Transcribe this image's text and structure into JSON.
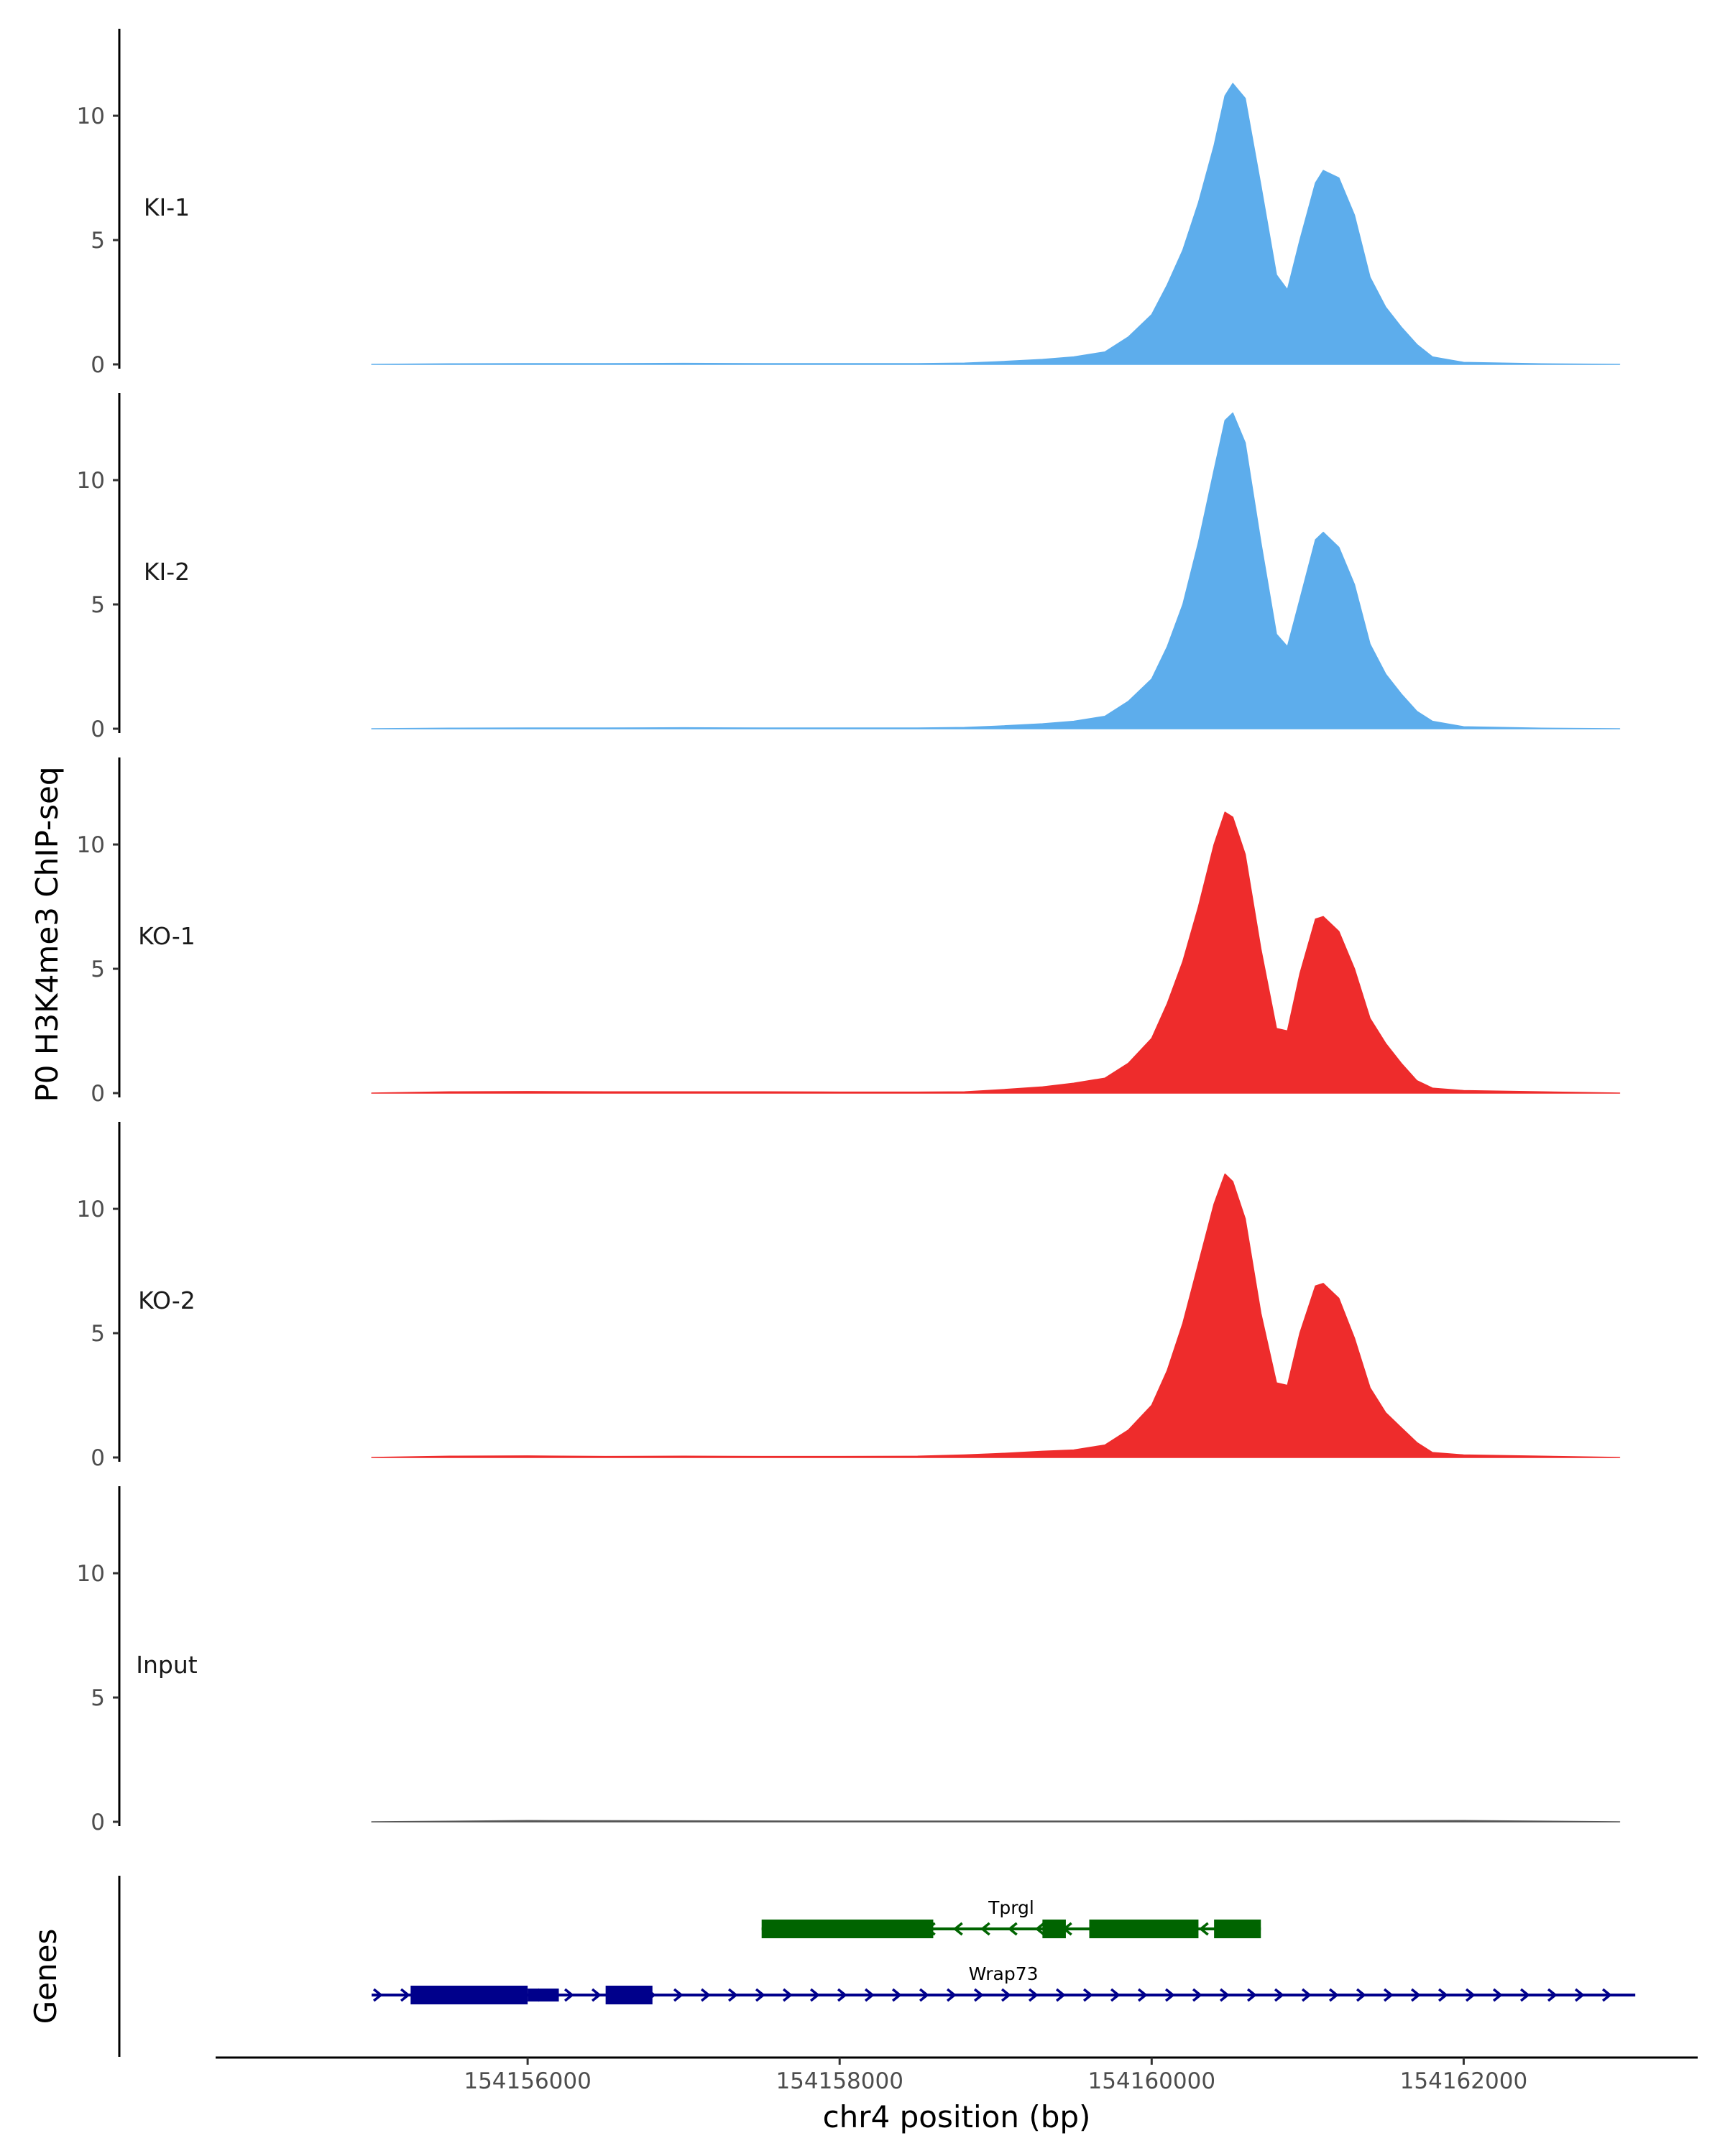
{
  "chart_data": {
    "type": "area",
    "ylabel": "P0 H3K4me3 ChIP-seq",
    "xlabel": "chr4 position (bp)",
    "xlim": [
      154154000,
      154163500
    ],
    "ylim": [
      0,
      13.5
    ],
    "yticks": [
      0,
      5,
      10
    ],
    "xticks": [
      154156000,
      154158000,
      154160000,
      154162000
    ],
    "tracks": [
      {
        "name": "KI-1",
        "color": "#5DADEC",
        "x": [
          154155000,
          154155500,
          154156000,
          154156500,
          154157000,
          154157500,
          154158000,
          154158500,
          154158800,
          154159000,
          154159300,
          154159500,
          154159700,
          154159850,
          154160000,
          154160100,
          154160200,
          154160300,
          154160400,
          154160470,
          154160520,
          154160600,
          154160700,
          154160800,
          154160870,
          154160950,
          154161050,
          154161100,
          154161200,
          154161300,
          154161400,
          154161500,
          154161600,
          154161700,
          154161800,
          154162000,
          154162500,
          154163000
        ],
        "y": [
          0,
          0.02,
          0.03,
          0.03,
          0.04,
          0.03,
          0.03,
          0.03,
          0.05,
          0.1,
          0.2,
          0.3,
          0.5,
          1.1,
          2,
          3.2,
          4.6,
          6.5,
          8.8,
          10.8,
          11.3,
          10.7,
          7.2,
          3.6,
          3,
          5,
          7.3,
          7.8,
          7.5,
          6,
          3.5,
          2.3,
          1.5,
          0.8,
          0.3,
          0.08,
          0.02,
          0
        ]
      },
      {
        "name": "KI-2",
        "color": "#5DADEC",
        "x": [
          154155000,
          154155500,
          154156000,
          154156500,
          154157000,
          154157500,
          154158000,
          154158500,
          154158800,
          154159000,
          154159300,
          154159500,
          154159700,
          154159850,
          154160000,
          154160100,
          154160200,
          154160300,
          154160400,
          154160470,
          154160520,
          154160600,
          154160700,
          154160800,
          154160870,
          154160950,
          154161050,
          154161100,
          154161200,
          154161300,
          154161400,
          154161500,
          154161600,
          154161700,
          154161800,
          154162000,
          154162500,
          154163000
        ],
        "y": [
          0,
          0.02,
          0.03,
          0.03,
          0.04,
          0.03,
          0.03,
          0.03,
          0.05,
          0.1,
          0.2,
          0.3,
          0.5,
          1.1,
          2,
          3.3,
          5,
          7.5,
          10.4,
          12.4,
          12.7,
          11.5,
          7.5,
          3.8,
          3.3,
          5.2,
          7.6,
          7.9,
          7.3,
          5.8,
          3.4,
          2.2,
          1.4,
          0.7,
          0.3,
          0.08,
          0.02,
          0
        ]
      },
      {
        "name": "KO-1",
        "color": "#EE2C2C",
        "x": [
          154155000,
          154155500,
          154156000,
          154156500,
          154157000,
          154157500,
          154158000,
          154158500,
          154158800,
          154159000,
          154159300,
          154159500,
          154159700,
          154159850,
          154160000,
          154160100,
          154160200,
          154160300,
          154160400,
          154160470,
          154160520,
          154160600,
          154160700,
          154160800,
          154160870,
          154160950,
          154161050,
          154161100,
          154161200,
          154161300,
          154161400,
          154161500,
          154161600,
          154161700,
          154161800,
          154162000,
          154162500,
          154163000
        ],
        "y": [
          0,
          0.05,
          0.06,
          0.05,
          0.05,
          0.05,
          0.04,
          0.04,
          0.05,
          0.12,
          0.25,
          0.4,
          0.6,
          1.2,
          2.2,
          3.6,
          5.3,
          7.5,
          10,
          11.3,
          11.1,
          9.6,
          5.8,
          2.6,
          2.5,
          4.8,
          7,
          7.1,
          6.5,
          5,
          3,
          2,
          1.2,
          0.5,
          0.2,
          0.1,
          0.05,
          0
        ]
      },
      {
        "name": "KO-2",
        "color": "#EE2C2C",
        "x": [
          154155000,
          154155500,
          154156000,
          154156500,
          154157000,
          154157500,
          154158000,
          154158500,
          154158800,
          154159000,
          154159300,
          154159500,
          154159700,
          154159850,
          154160000,
          154160100,
          154160200,
          154160300,
          154160400,
          154160470,
          154160520,
          154160600,
          154160700,
          154160800,
          154160870,
          154160950,
          154161050,
          154161100,
          154161200,
          154161300,
          154161400,
          154161500,
          154161600,
          154161700,
          154161800,
          154162000,
          154162500,
          154163000
        ],
        "y": [
          0,
          0.05,
          0.06,
          0.04,
          0.05,
          0.04,
          0.04,
          0.05,
          0.1,
          0.15,
          0.25,
          0.3,
          0.5,
          1.1,
          2.1,
          3.5,
          5.4,
          7.8,
          10.2,
          11.4,
          11.1,
          9.6,
          5.8,
          3,
          2.9,
          5,
          6.9,
          7,
          6.4,
          4.8,
          2.8,
          1.8,
          1.2,
          0.6,
          0.2,
          0.1,
          0.05,
          0
        ]
      },
      {
        "name": "Input",
        "color": "#555555",
        "x": [
          154155000,
          154156000,
          154157000,
          154158000,
          154159000,
          154160000,
          154161000,
          154162000,
          154163000
        ],
        "y": [
          0,
          0.05,
          0.04,
          0.03,
          0.03,
          0.03,
          0.04,
          0.05,
          0
        ]
      }
    ],
    "genes_label": "Genes",
    "genes": [
      {
        "name": "Tprgl",
        "color": "#006400",
        "strand": "-",
        "start": 154157500,
        "end": 154160700,
        "exons": [
          [
            154157500,
            154158600,
            "thick"
          ],
          [
            154159300,
            154159450,
            "thick"
          ],
          [
            154159600,
            154160300,
            "thick"
          ],
          [
            154160400,
            154160700,
            "thick"
          ]
        ]
      },
      {
        "name": "Wrap73",
        "color": "#00008B",
        "strand": "+",
        "start": 154155000,
        "end": 154163100,
        "exons": [
          [
            154155250,
            154156000,
            "thick"
          ],
          [
            154156000,
            154156200,
            "thin"
          ],
          [
            154156500,
            154156800,
            "thick"
          ]
        ]
      }
    ]
  }
}
